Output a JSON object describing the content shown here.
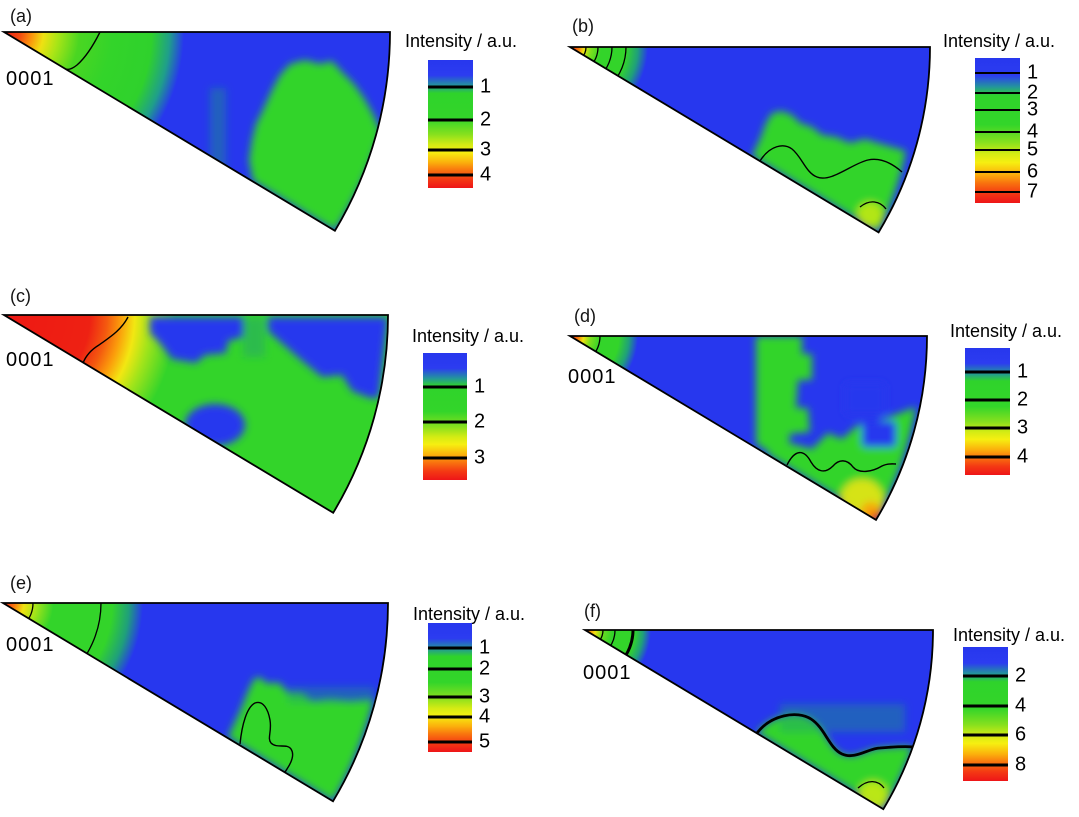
{
  "figure": {
    "background": "#ffffff",
    "colors": {
      "low_blue": "#2737ee",
      "mid_green": "#33d42a",
      "teal_transition": "#1fa07a",
      "yellow": "#f6ef11",
      "orange": "#fb8d0e",
      "max_red": "#ee1518",
      "contour": "#000000"
    },
    "panels": [
      {
        "label": "(a)",
        "apex_label": "0001",
        "colorbar": {
          "title": "Intensity / a.u.",
          "ticks": [
            {
              "label": "1",
              "pos": 0.21
            },
            {
              "label": "2",
              "pos": 0.47
            },
            {
              "label": "3",
              "pos": 0.7
            },
            {
              "label": "4",
              "pos": 0.9
            }
          ]
        }
      },
      {
        "label": "(b)",
        "apex_label": null,
        "colorbar": {
          "title": "Intensity / a.u.",
          "ticks": [
            {
              "label": "1",
              "pos": 0.103
            },
            {
              "label": "2",
              "pos": 0.241
            },
            {
              "label": "3",
              "pos": 0.359
            },
            {
              "label": "4",
              "pos": 0.51
            },
            {
              "label": "5",
              "pos": 0.634
            },
            {
              "label": "6",
              "pos": 0.786
            },
            {
              "label": "7",
              "pos": 0.924
            }
          ]
        }
      },
      {
        "label": "(c)",
        "apex_label": "0001",
        "colorbar": {
          "title": "Intensity / a.u.",
          "ticks": [
            {
              "label": "1",
              "pos": 0.27
            },
            {
              "label": "2",
              "pos": 0.54
            },
            {
              "label": "3",
              "pos": 0.83
            }
          ]
        }
      },
      {
        "label": "(d)",
        "apex_label": "0001",
        "colorbar": {
          "title": "Intensity / a.u.",
          "ticks": [
            {
              "label": "1",
              "pos": 0.19
            },
            {
              "label": "2",
              "pos": 0.41
            },
            {
              "label": "3",
              "pos": 0.63
            },
            {
              "label": "4",
              "pos": 0.86
            }
          ]
        }
      },
      {
        "label": "(e)",
        "apex_label": "0001",
        "colorbar": {
          "title": "Intensity / a.u.",
          "ticks": [
            {
              "label": "1",
              "pos": 0.19
            },
            {
              "label": "2",
              "pos": 0.36
            },
            {
              "label": "3",
              "pos": 0.57
            },
            {
              "label": "4",
              "pos": 0.73
            },
            {
              "label": "5",
              "pos": 0.92
            }
          ]
        }
      },
      {
        "label": "(f)",
        "apex_label": "0001",
        "colorbar": {
          "title": "Intensity / a.u.",
          "ticks": [
            {
              "label": "2",
              "pos": 0.22
            },
            {
              "label": "4",
              "pos": 0.44
            },
            {
              "label": "6",
              "pos": 0.66
            },
            {
              "label": "8",
              "pos": 0.88
            }
          ]
        }
      }
    ]
  },
  "chart_data": {
    "type": "heatmap",
    "figure_kind": "inverse pole figure (IPF) intensity contour maps; hexagonal stereographic unit triangle (wedge) with 0001 at the left apex",
    "colorbar_title": "Intensity / a.u.",
    "colormap": "rainbow: blue = low, green = mid, yellow/orange = high, red = maximum",
    "layout": "2 columns x 3 rows of wedge-shaped pole figures, each with its own vertical colorbar on the right",
    "panels": [
      {
        "panel": "(a)",
        "apex_label": "0001",
        "colorbar_ticks": [
          1,
          2,
          3,
          4
        ],
        "regions": [
          {
            "location": "0001 apex (left tip)",
            "intensity": ">4, red maximum fading through orange/yellow to green within ~40% of radius"
          },
          {
            "location": "central band and upper-right corner",
            "intensity": "<1 (blue)"
          },
          {
            "location": "lower-right half out to outer arc",
            "intensity": "~1.5-2 (green) with stepped green/blue boundary"
          }
        ],
        "contours": "one contour line crossing the wedge near the apex"
      },
      {
        "panel": "(b)",
        "apex_label": null,
        "colorbar_ticks": [
          1,
          2,
          3,
          4,
          5,
          6,
          7
        ],
        "regions": [
          {
            "location": "0001 apex",
            "intensity": "~7, sharp red maximum with tight concentric contour rings"
          },
          {
            "location": "most of wedge",
            "intensity": "<1 (blue)"
          },
          {
            "location": "lower-right near outer arc",
            "intensity": "~2-3 (green), rising to ~4 (yellowish) at bottom tip"
          }
        ],
        "contours": "rings at apex; wavy contour through lower-right green zone; small contour at bottom tip"
      },
      {
        "panel": "(c)",
        "apex_label": "0001",
        "colorbar_ticks": [
          1,
          2,
          3
        ],
        "regions": [
          {
            "location": "broad zone along top edge from 0001 apex",
            "intensity": ">3 (red), widest hot zone of all panels"
          },
          {
            "location": "majority of wedge",
            "intensity": "~1.5-2 (green)"
          },
          {
            "location": "upper-middle patch, large upper-right patch, small below-center patch",
            "intensity": "<1 (blue)"
          }
        ],
        "contours": "one contour bounding the apex hot zone"
      },
      {
        "panel": "(d)",
        "apex_label": "0001",
        "colorbar_ticks": [
          1,
          2,
          3,
          4
        ],
        "regions": [
          {
            "location": "0001 apex",
            "intensity": "~4 (small red spot with contour ring)"
          },
          {
            "location": "left half and upper right",
            "intensity": "<1 (blue)"
          },
          {
            "location": "stepped vertical band mid-wedge and lower-right",
            "intensity": "~2 (green)"
          },
          {
            "location": "near bottom tip",
            "intensity": "~3-4 (yellow-orange hot spot)"
          }
        ],
        "contours": "ring near apex; wavy contour above the yellow-orange tip zone"
      },
      {
        "panel": "(e)",
        "apex_label": "0001",
        "colorbar_ticks": [
          1,
          2,
          3,
          4,
          5
        ],
        "regions": [
          {
            "location": "0001 apex",
            "intensity": "~5 (red) with yellow/green halo and two contour arcs"
          },
          {
            "location": "upper and left portions",
            "intensity": "<1 (blue)"
          },
          {
            "location": "lower-right out to arc",
            "intensity": "~2 (green) with closed thumb-shaped contour near bottom"
          }
        ],
        "contours": "two arcs near apex; closed contour inside lower green zone"
      },
      {
        "panel": "(f)",
        "apex_label": "0001",
        "colorbar_ticks": [
          2,
          4,
          6,
          8
        ],
        "regions": [
          {
            "location": "0001 apex",
            "intensity": "~8 (red) with thick black contour ring"
          },
          {
            "location": "most of wedge",
            "intensity": "<2 (blue)"
          },
          {
            "location": "lower-right below thick wavy contour",
            "intensity": "~2-4 (green), ~6 (yellow-green) at bottom tip"
          }
        ],
        "contours": "thick wavy contour bounding lower-right green zone; rings at apex; thin contour near tip"
      }
    ]
  }
}
